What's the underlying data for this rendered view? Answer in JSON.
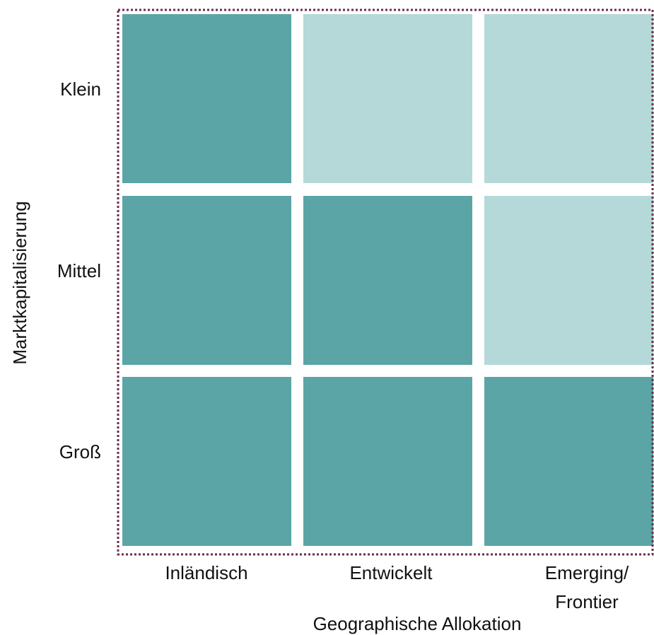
{
  "diagram": {
    "y_axis_title": "Marktkapitalisierung",
    "x_axis_title": "Geographische Allokation",
    "rows": [
      "Klein",
      "Mittel",
      "Groß"
    ],
    "columns": [
      [
        "Inländisch"
      ],
      [
        "Entwickelt"
      ],
      [
        "Emerging/",
        "Frontier"
      ]
    ],
    "cell_colors": [
      [
        "#5ba5a7",
        "#b5d9d8",
        "#b5d9d8"
      ],
      [
        "#5ba5a7",
        "#5ba5a7",
        "#b5d9d8"
      ],
      [
        "#5ba5a7",
        "#5ba5a7",
        "#5ba5a7"
      ]
    ],
    "border_color": "#6b2c4a"
  }
}
